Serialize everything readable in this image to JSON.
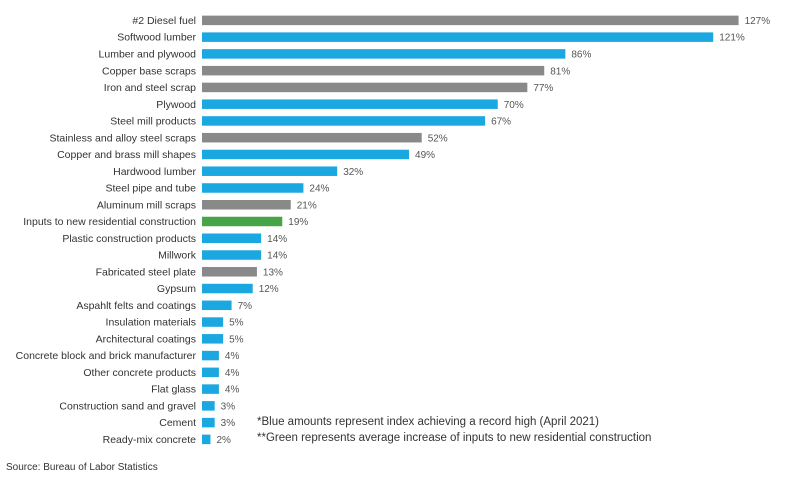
{
  "chart_data": {
    "type": "bar",
    "orientation": "horizontal",
    "categories": [
      "#2 Diesel fuel",
      "Softwood lumber",
      "Lumber and plywood",
      "Copper base scraps",
      "Iron and steel scrap",
      "Plywood",
      "Steel mill products",
      "Stainless and alloy steel scraps",
      "Copper and brass mill shapes",
      "Hardwood lumber",
      "Steel pipe and tube",
      "Aluminum mill scraps",
      "Inputs to new residential construction",
      "Plastic construction products",
      "Millwork",
      "Fabricated steel plate",
      "Gypsum",
      "Aspahlt felts and coatings",
      "Insulation materials",
      "Architectural coatings",
      "Concrete block and brick manufacturer",
      "Other concrete products",
      "Flat glass",
      "Construction sand and gravel",
      "Cement",
      "Ready-mix concrete"
    ],
    "values": [
      127,
      121,
      86,
      81,
      77,
      70,
      67,
      52,
      49,
      32,
      24,
      21,
      19,
      14,
      14,
      13,
      12,
      7,
      5,
      5,
      4,
      4,
      4,
      3,
      3,
      2
    ],
    "value_labels": [
      "127%",
      "121%",
      "86%",
      "81%",
      "77%",
      "70%",
      "67%",
      "52%",
      "49%",
      "32%",
      "24%",
      "21%",
      "19%",
      "14%",
      "14%",
      "13%",
      "12%",
      "7%",
      "5%",
      "5%",
      "4%",
      "4%",
      "4%",
      "3%",
      "3%",
      "2%"
    ],
    "bar_colors": [
      "#898989",
      "#1ba7e0",
      "#1ba7e0",
      "#898989",
      "#898989",
      "#1ba7e0",
      "#1ba7e0",
      "#898989",
      "#1ba7e0",
      "#1ba7e0",
      "#1ba7e0",
      "#898989",
      "#47a447",
      "#1ba7e0",
      "#1ba7e0",
      "#898989",
      "#1ba7e0",
      "#1ba7e0",
      "#1ba7e0",
      "#1ba7e0",
      "#1ba7e0",
      "#1ba7e0",
      "#1ba7e0",
      "#1ba7e0",
      "#1ba7e0",
      "#1ba7e0"
    ],
    "xlim": [
      0,
      130
    ],
    "grid": false,
    "legend": "none"
  },
  "colors": {
    "record_high": "#1ba7e0",
    "other": "#898989",
    "average": "#47a447"
  },
  "notes": [
    "*Blue amounts represent index achieving a record high (April 2021)",
    "**Green represents average increase of inputs to new residential construction"
  ],
  "source": "Source: Bureau of Labor Statistics"
}
